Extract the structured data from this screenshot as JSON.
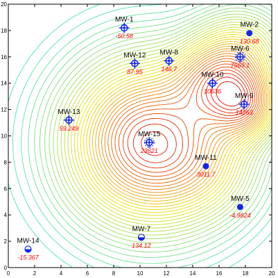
{
  "chart_data": {
    "type": "contour",
    "title": "",
    "xlabel": "",
    "ylabel": "",
    "xlim": [
      0,
      20
    ],
    "ylim": [
      0,
      20
    ],
    "x_ticks": [
      0,
      2,
      4,
      6,
      8,
      10,
      12,
      14,
      16,
      18,
      20
    ],
    "y_ticks": [
      0,
      2,
      4,
      6,
      8,
      10,
      12,
      14,
      16,
      18,
      20
    ],
    "grid": false,
    "contour_color_low": "#40e0c0",
    "contour_color_mid": "#f0e000",
    "contour_color_high": "#e00000",
    "wells": [
      {
        "name": "MW-1",
        "x": 8.8,
        "y": 18.2,
        "value": "-50.58",
        "symbol": "crosshair-circle-open"
      },
      {
        "name": "MW-2",
        "x": 18.3,
        "y": 17.8,
        "value": "130.68",
        "symbol": "filled-circle"
      },
      {
        "name": "MW-12",
        "x": 9.6,
        "y": 15.5,
        "value": "87.95",
        "symbol": "crosshair-circle-open"
      },
      {
        "name": "MW-8",
        "x": 12.2,
        "y": 15.7,
        "value": "146.7",
        "symbol": "crosshair-circle-open"
      },
      {
        "name": "MW-6",
        "x": 17.6,
        "y": 16.0,
        "value": "7569.1",
        "symbol": "crosshair-circle-rays"
      },
      {
        "name": "MW-10",
        "x": 15.5,
        "y": 14.0,
        "value": "10636",
        "symbol": "crosshair-circle-open"
      },
      {
        "name": "MW-9",
        "x": 17.9,
        "y": 12.4,
        "value": "14263",
        "symbol": "crosshair-circle-open"
      },
      {
        "name": "MW-13",
        "x": 4.6,
        "y": 11.2,
        "value": "59.249",
        "symbol": "crosshair-circle-open"
      },
      {
        "name": "MW-15",
        "x": 10.7,
        "y": 9.5,
        "value": "23621",
        "symbol": "crosshair-circle-rays"
      },
      {
        "name": "MW-11",
        "x": 15.0,
        "y": 7.7,
        "value": "3011.7",
        "symbol": "filled-circle"
      },
      {
        "name": "MW-5",
        "x": 17.6,
        "y": 4.6,
        "value": "-4.9824",
        "symbol": "filled-circle"
      },
      {
        "name": "MW-7",
        "x": 10.1,
        "y": 2.3,
        "value": "134.12",
        "symbol": "half-filled-circle"
      },
      {
        "name": "MW-14",
        "x": 1.5,
        "y": 1.4,
        "value": "-15.367",
        "symbol": "half-filled-circle"
      }
    ],
    "contour_sources": [
      {
        "x": 10.7,
        "y": 9.5,
        "strength": 1.0,
        "spread": 3.6
      },
      {
        "x": 17.9,
        "y": 12.4,
        "strength": 0.62,
        "spread": 1.7
      },
      {
        "x": 15.5,
        "y": 14.0,
        "strength": 0.5,
        "spread": 2.0
      },
      {
        "x": 17.6,
        "y": 16.0,
        "strength": 0.38,
        "spread": 2.1
      },
      {
        "x": 15.0,
        "y": 7.7,
        "strength": 0.18,
        "spread": 2.4
      }
    ],
    "contour_levels": 34
  }
}
